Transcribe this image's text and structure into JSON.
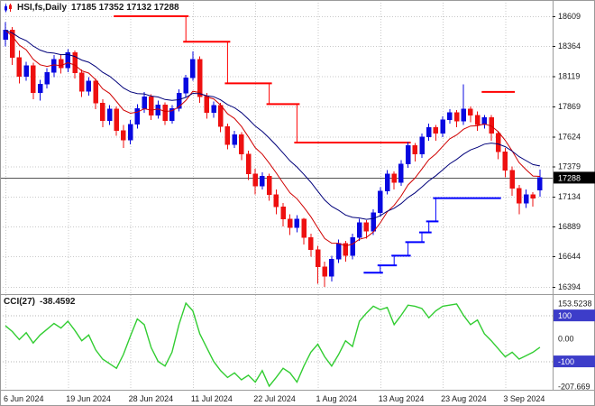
{
  "header": {
    "symbol_timeframe": "HSI,fs,Daily",
    "ohlc": "17185 17352 17132 17288"
  },
  "colors": {
    "up": "#0808e0",
    "down": "#ee1010",
    "ma_fast": "#d00000",
    "ma_slow": "#00007a",
    "stop_red": "#ff0000",
    "stop_blue": "#0000ff",
    "cci": "#32cd32",
    "grid": "#c9c9c9",
    "level_line": "#b4b4b4",
    "axis_text": "#1a1a1a",
    "separator": "#9a9a9a",
    "price_line": "#555555",
    "tag_bg": "#000000",
    "tag_text": "#ffffff",
    "level_tag_bg": "#3d3dc9"
  },
  "chart_data": {
    "type": "candlestick",
    "symbol": "HSI,fs",
    "timeframe": "Daily",
    "last_bar": {
      "open": 17185,
      "high": 17352,
      "low": 17132,
      "close": 17288
    },
    "price_axis": {
      "max": 18609,
      "min": 16394,
      "labels": [
        18609,
        18364,
        18119,
        17869,
        17624,
        17379,
        17134,
        16889,
        16644,
        16394
      ],
      "current": {
        "value": 17288,
        "text": "17288"
      }
    },
    "date_labels": [
      {
        "label": "6 Jun 2024",
        "i": 0
      },
      {
        "label": "19 Jun 2024",
        "i": 9
      },
      {
        "label": "28 Jun 2024",
        "i": 18
      },
      {
        "label": "11 Jul 2024",
        "i": 27
      },
      {
        "label": "22 Jul 2024",
        "i": 36
      },
      {
        "label": "1 Aug 2024",
        "i": 45
      },
      {
        "label": "13 Aug 2024",
        "i": 54
      },
      {
        "label": "23 Aug 2024",
        "i": 63
      },
      {
        "label": "3 Sep 2024",
        "i": 72
      }
    ],
    "candles": [
      [
        18420,
        18560,
        18360,
        18495
      ],
      [
        18495,
        18520,
        18210,
        18270
      ],
      [
        18270,
        18330,
        18060,
        18115
      ],
      [
        18115,
        18235,
        18080,
        18205
      ],
      [
        18205,
        18230,
        17930,
        17985
      ],
      [
        17985,
        18090,
        17920,
        18055
      ],
      [
        18055,
        18185,
        18020,
        18150
      ],
      [
        18150,
        18290,
        18110,
        18255
      ],
      [
        18255,
        18300,
        18140,
        18185
      ],
      [
        18185,
        18340,
        18150,
        18310
      ],
      [
        18310,
        18330,
        18100,
        18145
      ],
      [
        18145,
        18175,
        17950,
        17995
      ],
      [
        17995,
        18110,
        17960,
        18080
      ],
      [
        18080,
        18100,
        17850,
        17900
      ],
      [
        17900,
        17930,
        17700,
        17755
      ],
      [
        17755,
        17880,
        17720,
        17850
      ],
      [
        17850,
        17870,
        17630,
        17675
      ],
      [
        17675,
        17720,
        17530,
        17595
      ],
      [
        17595,
        17760,
        17560,
        17725
      ],
      [
        17725,
        17890,
        17690,
        17855
      ],
      [
        17855,
        17990,
        17820,
        17950
      ],
      [
        17950,
        17970,
        17760,
        17800
      ],
      [
        17800,
        17920,
        17770,
        17885
      ],
      [
        17885,
        17905,
        17720,
        17755
      ],
      [
        17755,
        17880,
        17730,
        17855
      ],
      [
        17855,
        18010,
        17830,
        17980
      ],
      [
        17980,
        18130,
        17950,
        18105
      ],
      [
        18105,
        18320,
        18080,
        18255
      ],
      [
        18255,
        18280,
        17900,
        17950
      ],
      [
        17950,
        17980,
        17770,
        17820
      ],
      [
        17820,
        17910,
        17780,
        17880
      ],
      [
        17880,
        17900,
        17660,
        17705
      ],
      [
        17705,
        17730,
        17520,
        17560
      ],
      [
        17560,
        17670,
        17530,
        17640
      ],
      [
        17640,
        17660,
        17430,
        17480
      ],
      [
        17480,
        17510,
        17270,
        17320
      ],
      [
        17320,
        17360,
        17150,
        17220
      ],
      [
        17220,
        17330,
        17190,
        17300
      ],
      [
        17300,
        17320,
        17100,
        17150
      ],
      [
        17150,
        17190,
        16990,
        17050
      ],
      [
        17050,
        17080,
        16890,
        16950
      ],
      [
        16950,
        16990,
        16820,
        16880
      ],
      [
        16880,
        16980,
        16840,
        16950
      ],
      [
        16950,
        16960,
        16740,
        16800
      ],
      [
        16800,
        16830,
        16640,
        16700
      ],
      [
        16700,
        16730,
        16420,
        16560
      ],
      [
        16560,
        16600,
        16394,
        16480
      ],
      [
        16480,
        16650,
        16440,
        16620
      ],
      [
        16620,
        16780,
        16590,
        16750
      ],
      [
        16750,
        16770,
        16600,
        16650
      ],
      [
        16650,
        16830,
        16620,
        16800
      ],
      [
        16800,
        16950,
        16770,
        16920
      ],
      [
        16920,
        16940,
        16790,
        16850
      ],
      [
        16850,
        17030,
        16820,
        17000
      ],
      [
        17000,
        17210,
        16970,
        17180
      ],
      [
        17180,
        17350,
        17150,
        17320
      ],
      [
        17320,
        17340,
        17190,
        17250
      ],
      [
        17250,
        17430,
        17220,
        17400
      ],
      [
        17400,
        17580,
        17370,
        17550
      ],
      [
        17550,
        17570,
        17420,
        17480
      ],
      [
        17480,
        17650,
        17450,
        17620
      ],
      [
        17620,
        17730,
        17590,
        17700
      ],
      [
        17700,
        17720,
        17590,
        17650
      ],
      [
        17650,
        17790,
        17620,
        17760
      ],
      [
        17760,
        17850,
        17730,
        17820
      ],
      [
        17820,
        17840,
        17700,
        17750
      ],
      [
        17750,
        18050,
        17720,
        17850
      ],
      [
        17850,
        17870,
        17740,
        17800
      ],
      [
        17800,
        17830,
        17670,
        17720
      ],
      [
        17720,
        17800,
        17690,
        17780
      ],
      [
        17780,
        17800,
        17590,
        17650
      ],
      [
        17650,
        17670,
        17440,
        17500
      ],
      [
        17500,
        17530,
        17290,
        17350
      ],
      [
        17350,
        17380,
        17140,
        17200
      ],
      [
        17200,
        17230,
        16990,
        17080
      ],
      [
        17080,
        17190,
        17040,
        17150
      ],
      [
        17150,
        17170,
        17050,
        17120
      ],
      [
        17185,
        17352,
        17132,
        17288
      ]
    ],
    "ma_fast": {
      "period": 8
    },
    "ma_slow": {
      "period": 18
    },
    "stop_lines": {
      "red": {
        "segments": [
          [
            16,
            26,
            18609
          ],
          [
            26,
            32,
            18400
          ],
          [
            32,
            38,
            18060
          ],
          [
            38,
            42,
            17890
          ],
          [
            42,
            58,
            17575
          ],
          [
            69,
            73,
            17990
          ]
        ]
      },
      "blue": {
        "segments": [
          [
            52,
            54,
            16510
          ],
          [
            54,
            56,
            16570
          ],
          [
            56,
            58,
            16650
          ],
          [
            58,
            60,
            16760
          ],
          [
            60,
            61,
            16840
          ],
          [
            61,
            62,
            16930
          ],
          [
            62,
            71,
            17120
          ]
        ]
      }
    },
    "cci": {
      "name": "CCI(27)",
      "value_text": "-38.4592",
      "max": 153.5238,
      "min": -207.669,
      "levels": [
        100,
        -100
      ],
      "axis_labels": [
        {
          "text": "153.5238",
          "value": 153.5238,
          "boxed": false
        },
        {
          "text": "100",
          "value": 100,
          "boxed": true
        },
        {
          "text": "0.00",
          "value": 0,
          "boxed": false
        },
        {
          "text": "-100",
          "value": -100,
          "boxed": true
        },
        {
          "text": "-207.669",
          "value": -207.669,
          "boxed": false
        }
      ],
      "values": [
        55,
        30,
        -5,
        25,
        -20,
        15,
        40,
        65,
        45,
        75,
        35,
        -10,
        15,
        -50,
        -90,
        -110,
        -130,
        -70,
        10,
        85,
        60,
        -40,
        -100,
        -120,
        -60,
        60,
        153.52,
        120,
        20,
        -40,
        -100,
        -140,
        -170,
        -150,
        -180,
        -160,
        -190,
        -140,
        -207.67,
        -170,
        -130,
        -150,
        -190,
        -120,
        -60,
        -25,
        -80,
        -120,
        -70,
        -10,
        -35,
        75,
        110,
        140,
        125,
        135,
        60,
        100,
        145,
        140,
        130,
        90,
        120,
        140,
        145,
        150,
        100,
        60,
        80,
        20,
        -10,
        -45,
        -80,
        -60,
        -90,
        -75,
        -60,
        -38.46
      ]
    }
  }
}
